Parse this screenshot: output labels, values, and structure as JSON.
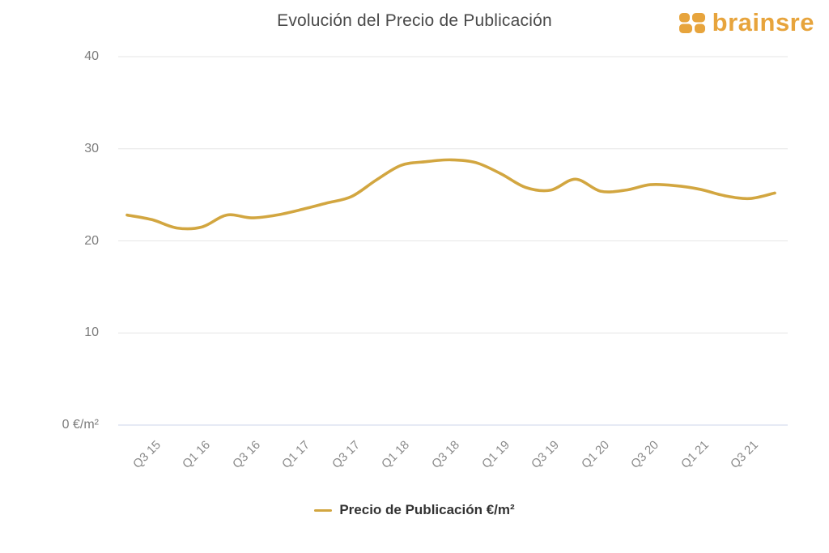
{
  "title": "Evolución del Precio de Publicación",
  "logo": {
    "text": "brainsre",
    "color": "#E7A43C"
  },
  "legend": {
    "label": "Precio de Publicación €/m²"
  },
  "colors": {
    "line": "#D2A640",
    "gridline": "#E6E6E6",
    "axis_line": "#CCD6EB",
    "title_text": "#4A4A4A",
    "tick_text": "#7D7D7D"
  },
  "chart_data": {
    "type": "line",
    "title": "Evolución del Precio de Publicación",
    "x": [
      "Q2 15",
      "Q3 15",
      "Q4 15",
      "Q1 16",
      "Q2 16",
      "Q3 16",
      "Q4 16",
      "Q1 17",
      "Q2 17",
      "Q3 17",
      "Q4 17",
      "Q1 18",
      "Q2 18",
      "Q3 18",
      "Q4 18",
      "Q1 19",
      "Q2 19",
      "Q3 19",
      "Q4 19",
      "Q1 20",
      "Q2 20",
      "Q3 20",
      "Q4 20",
      "Q1 21",
      "Q2 21",
      "Q3 21",
      "Q4 21"
    ],
    "series": [
      {
        "name": "Precio de Publicación €/m²",
        "color": "#D2A640",
        "values": [
          22.8,
          22.3,
          21.4,
          21.5,
          22.8,
          22.5,
          22.8,
          23.4,
          24.1,
          24.8,
          26.6,
          28.2,
          28.6,
          28.8,
          28.5,
          27.3,
          25.8,
          25.5,
          26.7,
          25.4,
          25.5,
          26.1,
          26.0,
          25.6,
          24.9,
          24.6,
          25.2
        ]
      }
    ],
    "xlabel": "",
    "ylabel": "€/m²",
    "xtick_labels": [
      "Q3 15",
      "Q1 16",
      "Q3 16",
      "Q1 17",
      "Q3 17",
      "Q1 18",
      "Q3 18",
      "Q1 19",
      "Q3 19",
      "Q1 20",
      "Q3 20",
      "Q1 21",
      "Q3 21"
    ],
    "yticks": [
      0,
      10,
      20,
      30,
      40
    ],
    "ytick_labels": [
      "0 €/m²",
      "10",
      "20",
      "30",
      "40"
    ],
    "ylim": [
      0,
      40
    ],
    "grid": true,
    "legend_position": "bottom",
    "smooth": true
  }
}
